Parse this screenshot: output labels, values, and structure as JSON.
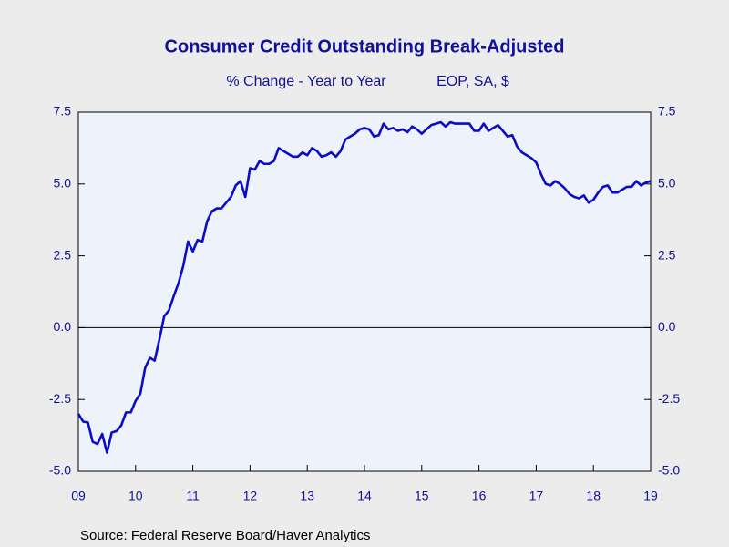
{
  "chart_data": {
    "type": "line",
    "title": "Consumer Credit Outstanding Break-Adjusted",
    "subtitle": [
      "% Change - Year to Year",
      "EOP, SA, $"
    ],
    "source": "Source:  Federal Reserve Board/Haver Analytics",
    "xlim": [
      2009,
      2019
    ],
    "xticks": [
      {
        "value": 2009,
        "label": "09"
      },
      {
        "value": 2010,
        "label": "10"
      },
      {
        "value": 2011,
        "label": "11"
      },
      {
        "value": 2012,
        "label": "12"
      },
      {
        "value": 2013,
        "label": "13"
      },
      {
        "value": 2014,
        "label": "14"
      },
      {
        "value": 2015,
        "label": "15"
      },
      {
        "value": 2016,
        "label": "16"
      },
      {
        "value": 2017,
        "label": "17"
      },
      {
        "value": 2018,
        "label": "18"
      },
      {
        "value": 2019,
        "label": "19"
      }
    ],
    "ylim": [
      -5,
      7.5
    ],
    "yticks": [
      {
        "value": -5,
        "label": "-5.0"
      },
      -2.5,
      {
        "value": 0,
        "label": "0.0"
      },
      2.5,
      {
        "value": 5,
        "label": "5.0"
      },
      7.5
    ],
    "y2lim": [
      -5,
      7.5
    ],
    "y2ticks": [
      {
        "value": -5,
        "label": "-5.0"
      },
      -2.5,
      {
        "value": 0,
        "label": "0.0"
      },
      2.5,
      {
        "value": 5,
        "label": "5.0"
      },
      7.5
    ],
    "zero_line": true,
    "x": [
      2009,
      2009.083,
      2009.167,
      2009.25,
      2009.333,
      2009.417,
      2009.5,
      2009.583,
      2009.667,
      2009.75,
      2009.833,
      2009.917,
      2010,
      2010.083,
      2010.167,
      2010.25,
      2010.333,
      2010.417,
      2010.5,
      2010.583,
      2010.667,
      2010.75,
      2010.833,
      2010.917,
      2011,
      2011.083,
      2011.167,
      2011.25,
      2011.333,
      2011.417,
      2011.5,
      2011.583,
      2011.667,
      2011.75,
      2011.833,
      2011.917,
      2012,
      2012.083,
      2012.167,
      2012.25,
      2012.333,
      2012.417,
      2012.5,
      2012.583,
      2012.667,
      2012.75,
      2012.833,
      2012.917,
      2013,
      2013.083,
      2013.167,
      2013.25,
      2013.333,
      2013.417,
      2013.5,
      2013.583,
      2013.667,
      2013.75,
      2013.833,
      2013.917,
      2014,
      2014.083,
      2014.167,
      2014.25,
      2014.333,
      2014.417,
      2014.5,
      2014.583,
      2014.667,
      2014.75,
      2014.833,
      2014.917,
      2015,
      2015.083,
      2015.167,
      2015.25,
      2015.333,
      2015.417,
      2015.5,
      2015.583,
      2015.667,
      2015.75,
      2015.833,
      2015.917,
      2016,
      2016.083,
      2016.167,
      2016.25,
      2016.333,
      2016.417,
      2016.5,
      2016.583,
      2016.667,
      2016.75,
      2016.833,
      2016.917,
      2017,
      2017.083,
      2017.167,
      2017.25,
      2017.333,
      2017.417,
      2017.5,
      2017.583,
      2017.667,
      2017.75,
      2017.833,
      2017.917,
      2018,
      2018.083,
      2018.167,
      2018.25,
      2018.333,
      2018.417,
      2018.5,
      2018.583,
      2018.667,
      2018.75,
      2018.833,
      2018.917,
      2019
    ],
    "series": [
      {
        "name": "Consumer Credit Outstanding",
        "color": "#0c0cc4",
        "values": [
          -3.0,
          -3.27,
          -3.3,
          -3.97,
          -4.05,
          -3.7,
          -4.35,
          -3.65,
          -3.6,
          -3.4,
          -2.95,
          -2.95,
          -2.55,
          -2.3,
          -1.4,
          -1.05,
          -1.15,
          -0.4,
          0.4,
          0.6,
          1.1,
          1.55,
          2.15,
          3.0,
          2.65,
          3.05,
          3.0,
          3.7,
          4.05,
          4.15,
          4.15,
          4.35,
          4.55,
          4.95,
          5.1,
          4.55,
          5.55,
          5.5,
          5.8,
          5.7,
          5.7,
          5.8,
          6.25,
          6.15,
          6.05,
          5.95,
          5.95,
          6.1,
          6.0,
          6.25,
          6.15,
          5.95,
          6.0,
          6.1,
          5.95,
          6.15,
          6.55,
          6.65,
          6.75,
          6.9,
          6.95,
          6.9,
          6.65,
          6.7,
          7.1,
          6.9,
          6.95,
          6.85,
          6.9,
          6.8,
          7.0,
          6.9,
          6.75,
          6.9,
          7.05,
          7.1,
          7.15,
          7.0,
          7.15,
          7.1,
          7.1,
          7.1,
          7.1,
          6.85,
          6.85,
          7.1,
          6.85,
          6.95,
          7.05,
          6.85,
          6.65,
          6.7,
          6.3,
          6.1,
          6.0,
          5.9,
          5.75,
          5.35,
          5.0,
          4.95,
          5.1,
          5.0,
          4.85,
          4.65,
          4.55,
          4.5,
          4.6,
          4.35,
          4.45,
          4.7,
          4.9,
          4.95,
          4.7,
          4.7,
          4.8,
          4.9,
          4.9,
          5.1,
          4.95,
          5.05,
          5.1
        ]
      }
    ]
  }
}
